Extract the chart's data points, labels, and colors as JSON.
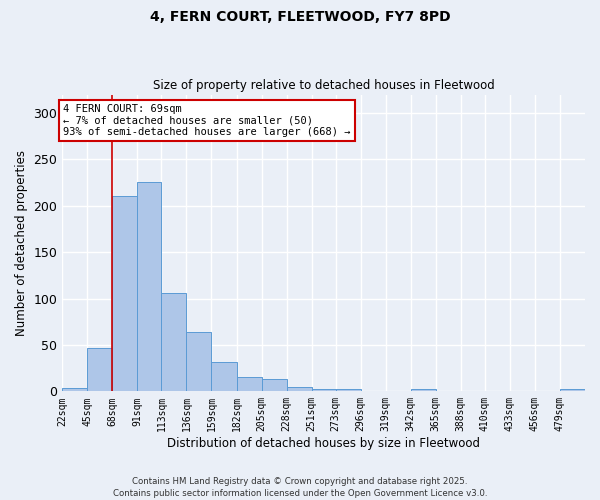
{
  "title": "4, FERN COURT, FLEETWOOD, FY7 8PD",
  "subtitle": "Size of property relative to detached houses in Fleetwood",
  "xlabel": "Distribution of detached houses by size in Fleetwood",
  "ylabel": "Number of detached properties",
  "bin_labels": [
    "22sqm",
    "45sqm",
    "68sqm",
    "91sqm",
    "113sqm",
    "136sqm",
    "159sqm",
    "182sqm",
    "205sqm",
    "228sqm",
    "251sqm",
    "273sqm",
    "296sqm",
    "319sqm",
    "342sqm",
    "365sqm",
    "388sqm",
    "410sqm",
    "433sqm",
    "456sqm",
    "479sqm"
  ],
  "bin_edges": [
    22,
    45,
    68,
    91,
    113,
    136,
    159,
    182,
    205,
    228,
    251,
    273,
    296,
    319,
    342,
    365,
    388,
    410,
    433,
    456,
    479,
    502
  ],
  "values": [
    4,
    47,
    211,
    226,
    106,
    64,
    32,
    15,
    13,
    5,
    3,
    2,
    0,
    0,
    2,
    0,
    0,
    0,
    0,
    0,
    2
  ],
  "bar_color": "#aec6e8",
  "bar_edge_color": "#5b9bd5",
  "property_line_x": 68,
  "property_line_color": "#cc0000",
  "annotation_text": "4 FERN COURT: 69sqm\n← 7% of detached houses are smaller (50)\n93% of semi-detached houses are larger (668) →",
  "annotation_box_color": "#ffffff",
  "annotation_box_edge_color": "#cc0000",
  "ylim": [
    0,
    320
  ],
  "yticks": [
    0,
    50,
    100,
    150,
    200,
    250,
    300
  ],
  "background_color": "#eaeff7",
  "grid_color": "#ffffff",
  "footnote1": "Contains HM Land Registry data © Crown copyright and database right 2025.",
  "footnote2": "Contains public sector information licensed under the Open Government Licence v3.0."
}
